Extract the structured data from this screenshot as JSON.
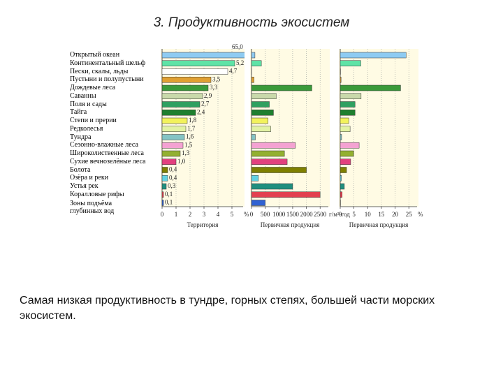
{
  "title": "3. Продуктивность экосистем",
  "caption": "Самая низкая продуктивность в тундре, горных степях, большей части морских экосистем.",
  "chart_data": [
    {
      "type": "bar",
      "orientation": "horizontal",
      "xlabel": "Территория",
      "xunit": "%",
      "categories": [
        "Открытый океан",
        "Континентальный шельф",
        "Пески, скалы, льды",
        "Пустыни и полупустыни",
        "Дождевые леса",
        "Саванны",
        "Поля и сады",
        "Тайга",
        "Степи и прерии",
        "Редколесья",
        "Тундра",
        "Сезонно-влажные леса",
        "Широколиственные леса",
        "Сухие вечнозелёные леса",
        "Болота",
        "Озёра и реки",
        "Устья рек",
        "Коралловые рифы",
        "Зоны подъёма глубинных вод"
      ],
      "colors": [
        "#8ecbf2",
        "#5fe3a6",
        "#ffffff",
        "#e0a032",
        "#3a9a3a",
        "#c9d9aa",
        "#2fa060",
        "#1f7f2f",
        "#f2f25c",
        "#e2f2a4",
        "#84c4c4",
        "#f4a2d2",
        "#93b030",
        "#e2407e",
        "#7f8000",
        "#62d2e2",
        "#1f8f7f",
        "#e24050",
        "#3062d2"
      ],
      "values": [
        65.0,
        5.2,
        4.7,
        3.5,
        3.3,
        2.9,
        2.7,
        2.4,
        1.8,
        1.7,
        1.6,
        1.5,
        1.3,
        1.0,
        0.4,
        0.4,
        0.3,
        0.1,
        0.1
      ],
      "value_labels": [
        "65,0",
        "5,2",
        "4,7",
        "3,5",
        "3,3",
        "2,9",
        "2,7",
        "2,4",
        "1,8",
        "1,7",
        "1,6",
        "1,5",
        "1,3",
        "1,0",
        "0,4",
        "0,4",
        "0,3",
        "0,1",
        "0,1"
      ],
      "xlim": [
        0,
        5.8
      ],
      "xticks": [
        0,
        1,
        2,
        3,
        4,
        5
      ],
      "grid": true
    },
    {
      "type": "bar",
      "orientation": "horizontal",
      "xlabel": "Первичная продукция",
      "xunit": "г/м²·год",
      "values": [
        125,
        360,
        3,
        90,
        2200,
        900,
        650,
        800,
        600,
        700,
        140,
        1600,
        1200,
        1300,
        2000,
        250,
        1500,
        2500,
        500
      ],
      "xlim": [
        0,
        2800
      ],
      "xticks": [
        0,
        500,
        1000,
        1500,
        2000,
        2500
      ],
      "grid": true
    },
    {
      "type": "bar",
      "orientation": "horizontal",
      "xlabel": "Первичная продукция",
      "xunit": "%",
      "values": [
        24,
        7.5,
        0.1,
        0.3,
        22,
        7.6,
        5.4,
        5.4,
        3.1,
        3.6,
        0.5,
        6.9,
        4.9,
        3.8,
        2.3,
        0.4,
        1.5,
        0.7,
        0.1
      ],
      "xlim": [
        0,
        28
      ],
      "xticks": [
        0,
        5,
        10,
        15,
        20,
        25
      ],
      "grid": true
    }
  ]
}
